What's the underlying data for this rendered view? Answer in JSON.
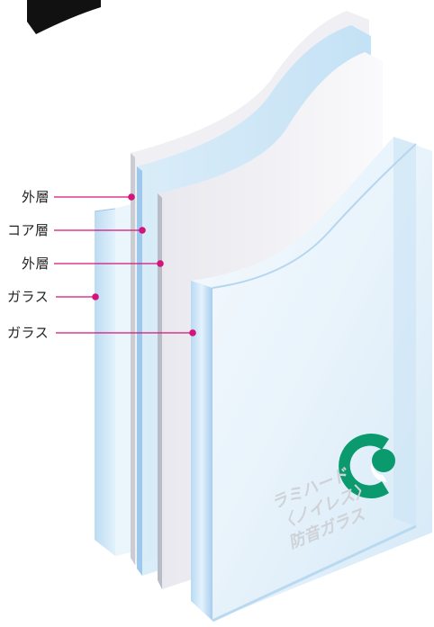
{
  "labels": [
    {
      "text": "外層"
    },
    {
      "text": "コア層"
    },
    {
      "text": "外層"
    },
    {
      "text": "ガラス"
    },
    {
      "text": "ガラス"
    }
  ],
  "watermark": {
    "line1": "ラミハード",
    "line2": "〈ノイレス〉",
    "line3": "防音ガラス"
  },
  "colors": {
    "accent": "#d6137a",
    "logo": "#0b9a6e",
    "glass": "#cfe6f7",
    "glass_edge": "#a9cfee",
    "film": "#f1f1f4"
  },
  "icons": {
    "logo": "green-c-logo-icon",
    "corner_badge": "black-tag-icon"
  }
}
